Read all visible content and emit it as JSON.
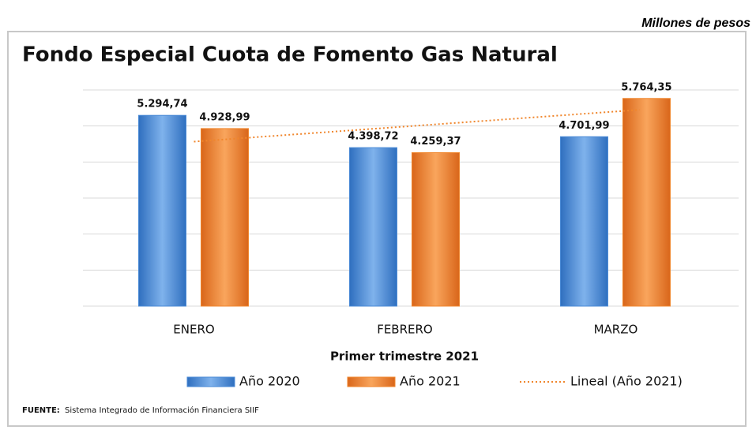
{
  "chart_data": {
    "type": "bar",
    "unit_note": "Millones de pesos",
    "title": "Fondo Especial Cuota de Fomento Gas Natural",
    "xlabel": "Primer trimestre 2021",
    "categories": [
      "ENERO",
      "FEBRERO",
      "MARZO"
    ],
    "series": [
      {
        "name": "Año 2020",
        "color": "#4a8ad6",
        "values": [
          5294.74,
          4398.72,
          4701.99
        ],
        "value_labels": [
          "5.294,74",
          "4.398,72",
          "4.701,99"
        ]
      },
      {
        "name": "Año 2021",
        "color": "#f0862c",
        "values": [
          4928.99,
          4259.37,
          5764.35
        ],
        "value_labels": [
          "4.928,99",
          "4.259,37",
          "5.764,35"
        ]
      }
    ],
    "trendline": {
      "name": "Lineal (Año 2021)",
      "color": "#f0862c",
      "fit": "linear"
    },
    "ylim": [
      0,
      6000
    ],
    "yticks": [
      0,
      1000,
      2000,
      3000,
      4000,
      5000,
      6000
    ],
    "grid": true,
    "source_label": "FUENTE:",
    "source": "Sistema Integrado de Información Financiera SIIF"
  }
}
